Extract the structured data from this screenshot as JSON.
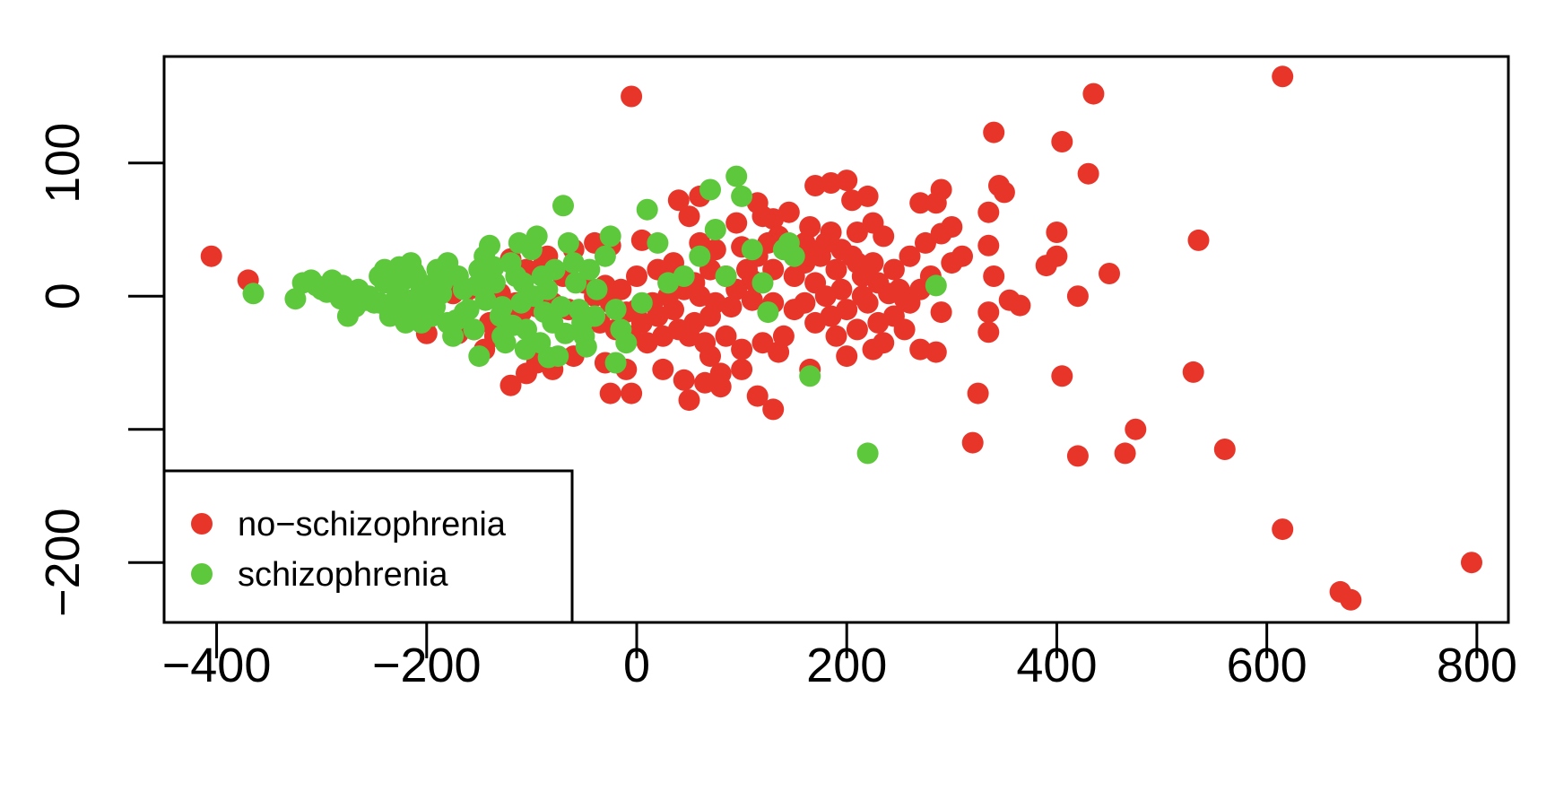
{
  "chart_data": {
    "type": "scatter",
    "title": "",
    "xlabel": "",
    "ylabel": "",
    "xlim": [
      -450,
      830
    ],
    "ylim": [
      -245,
      180
    ],
    "x_ticks": [
      "-400",
      "-200",
      "0",
      "200",
      "400",
      "600",
      "800"
    ],
    "x_tick_values": [
      -400,
      -200,
      0,
      200,
      400,
      600,
      800
    ],
    "y_ticks": [
      "-200",
      "0",
      "100"
    ],
    "y_tick_values": [
      -200,
      0,
      100
    ],
    "y_minor_tick_values": [
      -100
    ],
    "grid": false,
    "legend": {
      "position": "bottom-left",
      "entries": [
        "no−schizophrenia",
        "schizophrenia"
      ]
    },
    "series": [
      {
        "name": "no−schizophrenia",
        "color": "#e8352a",
        "points": [
          [
            -405,
            30
          ],
          [
            -370,
            12
          ],
          [
            -175,
            2
          ],
          [
            -5,
            150
          ],
          [
            435,
            152
          ],
          [
            615,
            165
          ],
          [
            340,
            123
          ],
          [
            405,
            116
          ],
          [
            430,
            92
          ],
          [
            345,
            83
          ],
          [
            350,
            78
          ],
          [
            290,
            80
          ],
          [
            270,
            70
          ],
          [
            285,
            70
          ],
          [
            300,
            52
          ],
          [
            290,
            47
          ],
          [
            275,
            40
          ],
          [
            335,
            63
          ],
          [
            335,
            38
          ],
          [
            300,
            25
          ],
          [
            310,
            30
          ],
          [
            340,
            15
          ],
          [
            400,
            48
          ],
          [
            400,
            30
          ],
          [
            390,
            23
          ],
          [
            450,
            17
          ],
          [
            535,
            42
          ],
          [
            420,
            0
          ],
          [
            355,
            -3
          ],
          [
            365,
            -7
          ],
          [
            335,
            -12
          ],
          [
            290,
            -12
          ],
          [
            335,
            -27
          ],
          [
            270,
            -40
          ],
          [
            285,
            -42
          ],
          [
            405,
            -60
          ],
          [
            530,
            -57
          ],
          [
            325,
            -73
          ],
          [
            475,
            -100
          ],
          [
            320,
            -110
          ],
          [
            420,
            -120
          ],
          [
            465,
            -118
          ],
          [
            560,
            -115
          ],
          [
            615,
            -175
          ],
          [
            795,
            -200
          ],
          [
            670,
            -222
          ],
          [
            680,
            -228
          ],
          [
            200,
            87
          ],
          [
            185,
            85
          ],
          [
            170,
            83
          ],
          [
            220,
            75
          ],
          [
            205,
            72
          ],
          [
            40,
            72
          ],
          [
            60,
            75
          ],
          [
            115,
            70
          ],
          [
            145,
            63
          ],
          [
            50,
            60
          ],
          [
            95,
            55
          ],
          [
            120,
            60
          ],
          [
            130,
            58
          ],
          [
            165,
            52
          ],
          [
            185,
            48
          ],
          [
            210,
            48
          ],
          [
            225,
            55
          ],
          [
            235,
            45
          ],
          [
            160,
            40
          ],
          [
            140,
            38
          ],
          [
            100,
            37
          ],
          [
            75,
            35
          ],
          [
            60,
            40
          ],
          [
            5,
            42
          ],
          [
            -25,
            38
          ],
          [
            -40,
            40
          ],
          [
            -60,
            35
          ],
          [
            -85,
            30
          ],
          [
            -120,
            28
          ],
          [
            -105,
            20
          ],
          [
            -90,
            22
          ],
          [
            -70,
            15
          ],
          [
            -50,
            10
          ],
          [
            -30,
            8
          ],
          [
            -15,
            5
          ],
          [
            0,
            15
          ],
          [
            20,
            20
          ],
          [
            35,
            25
          ],
          [
            55,
            10
          ],
          [
            70,
            20
          ],
          [
            85,
            15
          ],
          [
            110,
            12
          ],
          [
            130,
            20
          ],
          [
            150,
            15
          ],
          [
            170,
            10
          ],
          [
            195,
            5
          ],
          [
            215,
            0
          ],
          [
            240,
            2
          ],
          [
            250,
            5
          ],
          [
            260,
            -5
          ],
          [
            245,
            -15
          ],
          [
            230,
            -20
          ],
          [
            210,
            -25
          ],
          [
            190,
            -30
          ],
          [
            170,
            -20
          ],
          [
            150,
            -10
          ],
          [
            130,
            -5
          ],
          [
            110,
            -3
          ],
          [
            90,
            -8
          ],
          [
            70,
            -15
          ],
          [
            55,
            -20
          ],
          [
            40,
            -25
          ],
          [
            25,
            -30
          ],
          [
            10,
            -35
          ],
          [
            -5,
            -30
          ],
          [
            -20,
            -25
          ],
          [
            -35,
            -20
          ],
          [
            -50,
            -15
          ],
          [
            -65,
            -10
          ],
          [
            -80,
            -5
          ],
          [
            -95,
            -8
          ],
          [
            -110,
            -12
          ],
          [
            -125,
            -15
          ],
          [
            -140,
            -20
          ],
          [
            -155,
            -25
          ],
          [
            -170,
            -28
          ],
          [
            -200,
            -28
          ],
          [
            -95,
            -50
          ],
          [
            -80,
            -55
          ],
          [
            -60,
            -45
          ],
          [
            -30,
            -50
          ],
          [
            -10,
            -55
          ],
          [
            -25,
            -73
          ],
          [
            -5,
            -73
          ],
          [
            25,
            -55
          ],
          [
            45,
            -63
          ],
          [
            50,
            -78
          ],
          [
            65,
            -65
          ],
          [
            70,
            -45
          ],
          [
            80,
            -58
          ],
          [
            80,
            -68
          ],
          [
            100,
            -55
          ],
          [
            115,
            -75
          ],
          [
            130,
            -85
          ],
          [
            135,
            -42
          ],
          [
            165,
            -55
          ],
          [
            200,
            -45
          ],
          [
            225,
            -40
          ],
          [
            235,
            -35
          ],
          [
            255,
            -25
          ],
          [
            -120,
            -67
          ],
          [
            -105,
            -58
          ],
          [
            -145,
            -40
          ],
          [
            -135,
            -30
          ],
          [
            -160,
            5
          ],
          [
            -145,
            10
          ],
          [
            -130,
            2
          ],
          [
            -115,
            -5
          ],
          [
            0,
            -10
          ],
          [
            15,
            -5
          ],
          [
            30,
            0
          ],
          [
            45,
            5
          ],
          [
            60,
            0
          ],
          [
            75,
            -5
          ],
          [
            95,
            5
          ],
          [
            105,
            20
          ],
          [
            115,
            30
          ],
          [
            125,
            40
          ],
          [
            135,
            45
          ],
          [
            150,
            30
          ],
          [
            160,
            25
          ],
          [
            175,
            30
          ],
          [
            190,
            20
          ],
          [
            205,
            30
          ],
          [
            215,
            15
          ],
          [
            230,
            10
          ],
          [
            245,
            20
          ],
          [
            260,
            30
          ],
          [
            280,
            15
          ],
          [
            270,
            5
          ],
          [
            255,
            -2
          ],
          [
            20,
            -15
          ],
          [
            5,
            -20
          ],
          [
            -10,
            -12
          ],
          [
            -25,
            -5
          ],
          [
            -40,
            0
          ],
          [
            35,
            -10
          ],
          [
            50,
            -30
          ],
          [
            65,
            -35
          ],
          [
            85,
            -30
          ],
          [
            100,
            -40
          ],
          [
            120,
            -35
          ],
          [
            140,
            -30
          ],
          [
            160,
            -5
          ],
          [
            180,
            0
          ],
          [
            200,
            -10
          ],
          [
            220,
            -5
          ],
          [
            185,
            -15
          ],
          [
            165,
            35
          ],
          [
            180,
            40
          ],
          [
            195,
            35
          ],
          [
            210,
            25
          ],
          [
            225,
            25
          ]
        ]
      },
      {
        "name": "schizophrenia",
        "color": "#5dc83c",
        "points": [
          [
            -365,
            2
          ],
          [
            -325,
            -2
          ],
          [
            -310,
            12
          ],
          [
            -300,
            5
          ],
          [
            -290,
            12
          ],
          [
            -280,
            8
          ],
          [
            -275,
            -15
          ],
          [
            -265,
            5
          ],
          [
            -255,
            0
          ],
          [
            -250,
            -5
          ],
          [
            -245,
            15
          ],
          [
            -240,
            20
          ],
          [
            -235,
            10
          ],
          [
            -230,
            -3
          ],
          [
            -225,
            -10
          ],
          [
            -220,
            -20
          ],
          [
            -215,
            25
          ],
          [
            -210,
            15
          ],
          [
            -205,
            5
          ],
          [
            -200,
            -5
          ],
          [
            -195,
            -15
          ],
          [
            -190,
            20
          ],
          [
            -185,
            10
          ],
          [
            -180,
            -20
          ],
          [
            -175,
            -30
          ],
          [
            -170,
            15
          ],
          [
            -165,
            5
          ],
          [
            -160,
            -10
          ],
          [
            -155,
            -25
          ],
          [
            -150,
            20
          ],
          [
            -145,
            30
          ],
          [
            -140,
            38
          ],
          [
            -135,
            10
          ],
          [
            -130,
            -15
          ],
          [
            -125,
            -35
          ],
          [
            -120,
            25
          ],
          [
            -115,
            15
          ],
          [
            -110,
            -5
          ],
          [
            -105,
            -25
          ],
          [
            -100,
            35
          ],
          [
            -95,
            45
          ],
          [
            -90,
            15
          ],
          [
            -85,
            5
          ],
          [
            -80,
            -20
          ],
          [
            -75,
            -45
          ],
          [
            -70,
            68
          ],
          [
            -65,
            40
          ],
          [
            -60,
            25
          ],
          [
            -55,
            -10
          ],
          [
            -50,
            -30
          ],
          [
            -45,
            20
          ],
          [
            -40,
            -15
          ],
          [
            -30,
            30
          ],
          [
            -25,
            45
          ],
          [
            -20,
            -10
          ],
          [
            -15,
            -25
          ],
          [
            -10,
            -35
          ],
          [
            -20,
            -50
          ],
          [
            5,
            -5
          ],
          [
            10,
            65
          ],
          [
            20,
            40
          ],
          [
            30,
            10
          ],
          [
            45,
            15
          ],
          [
            60,
            30
          ],
          [
            70,
            80
          ],
          [
            75,
            50
          ],
          [
            85,
            15
          ],
          [
            95,
            90
          ],
          [
            100,
            75
          ],
          [
            110,
            35
          ],
          [
            120,
            10
          ],
          [
            125,
            -12
          ],
          [
            140,
            35
          ],
          [
            145,
            40
          ],
          [
            150,
            30
          ],
          [
            165,
            -60
          ],
          [
            220,
            -118
          ],
          [
            285,
            8
          ],
          [
            -245,
            -5
          ],
          [
            -235,
            -15
          ],
          [
            -228,
            5
          ],
          [
            -222,
            12
          ],
          [
            -215,
            -3
          ],
          [
            -210,
            -12
          ],
          [
            -205,
            -20
          ],
          [
            -198,
            8
          ],
          [
            -192,
            -8
          ],
          [
            -186,
            2
          ],
          [
            -212,
            18
          ],
          [
            -226,
            22
          ],
          [
            -240,
            10
          ],
          [
            -258,
            -3
          ],
          [
            -268,
            -8
          ],
          [
            -282,
            -2
          ],
          [
            -295,
            3
          ],
          [
            -305,
            8
          ],
          [
            -318,
            10
          ],
          [
            -180,
            25
          ],
          [
            -172,
            -18
          ],
          [
            -164,
            -12
          ],
          [
            -152,
            8
          ],
          [
            -144,
            -3
          ],
          [
            -136,
            22
          ],
          [
            -128,
            -8
          ],
          [
            -118,
            -22
          ],
          [
            -108,
            10
          ],
          [
            -98,
            0
          ],
          [
            -88,
            -12
          ],
          [
            -78,
            20
          ],
          [
            -68,
            -28
          ],
          [
            -58,
            10
          ],
          [
            -48,
            -38
          ],
          [
            -38,
            5
          ],
          [
            -112,
            40
          ],
          [
            -92,
            -35
          ],
          [
            -72,
            -8
          ],
          [
            -52,
            -20
          ],
          [
            -128,
            -30
          ],
          [
            -150,
            -45
          ],
          [
            -106,
            -40
          ],
          [
            -84,
            -46
          ]
        ]
      }
    ]
  }
}
